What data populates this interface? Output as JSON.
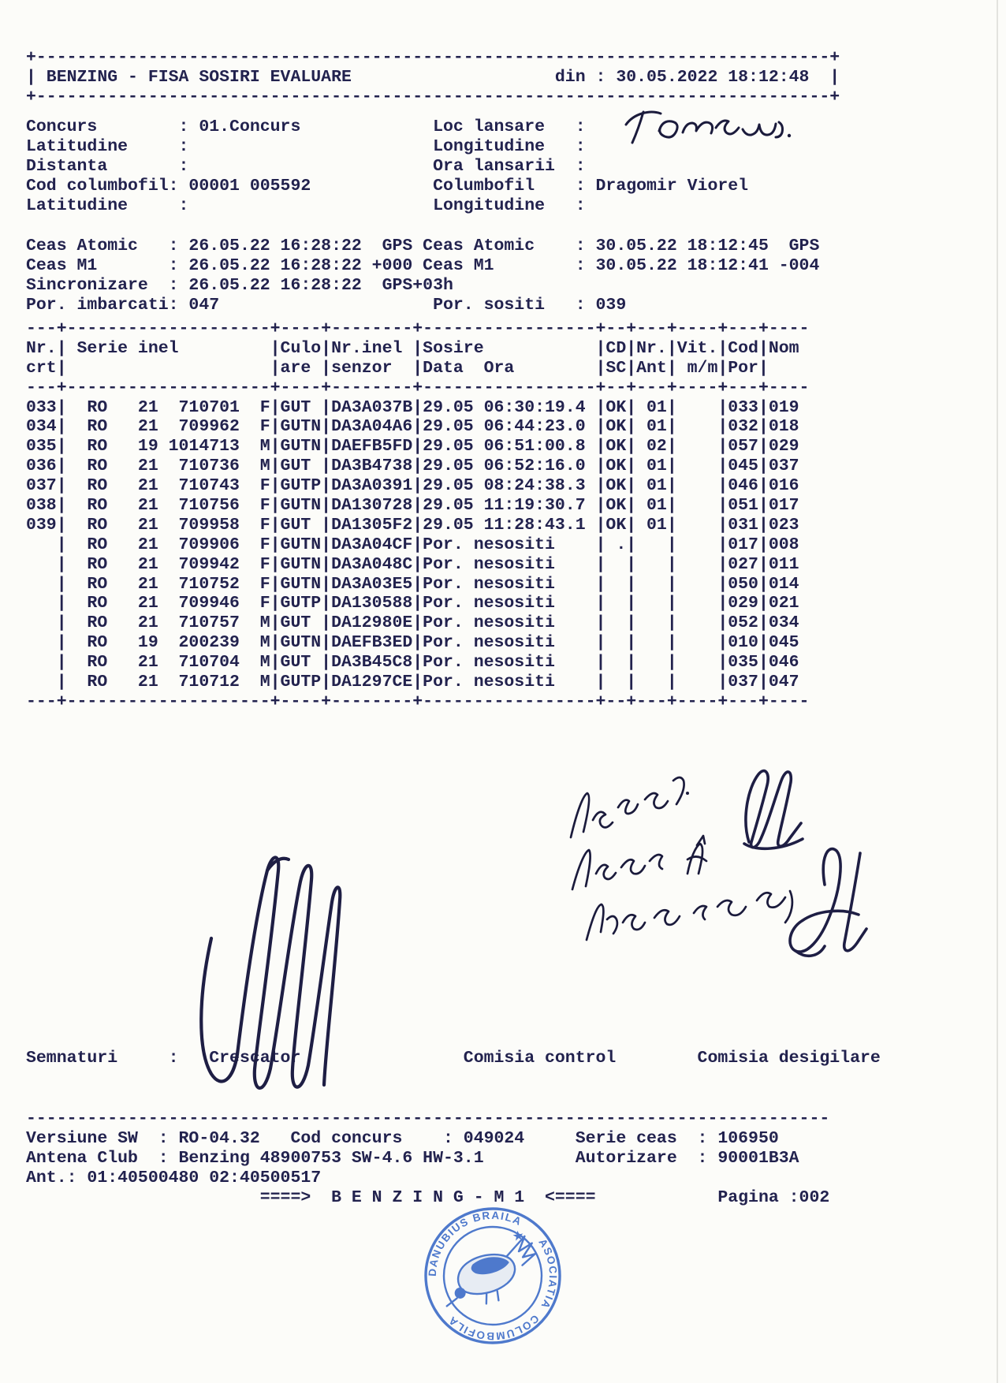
{
  "page": {
    "background": "#fcfcf9",
    "ink_color": "#22224e",
    "handwriting_color": "#1b1b3c",
    "stamp_color": "#3767c6"
  },
  "header": {
    "title": "BENZING - FISA SOSIRI EVALUARE",
    "din_label": "din",
    "din_value": "30.05.2022 18:12:48"
  },
  "info": {
    "rows": [
      {
        "left_label": "Concurs",
        "left_value": "01.Concurs",
        "right_label": "Loc lansare",
        "right_value": ""
      },
      {
        "left_label": "Latitudine",
        "left_value": "",
        "right_label": "Longitudine",
        "right_value": ""
      },
      {
        "left_label": "Distanta",
        "left_value": "",
        "right_label": "Ora lansarii",
        "right_value": ""
      },
      {
        "left_label": "Cod columbofil",
        "left_value": "00001 005592",
        "right_label": "Columbofil",
        "right_value": "Dragomir Viorel"
      },
      {
        "left_label": "Latitudine",
        "left_value": "",
        "right_label": "Longitudine",
        "right_value": ""
      }
    ]
  },
  "handwriting": {
    "loc_lansare": "Tomaszow"
  },
  "clocks": {
    "rows": [
      {
        "left_label": "Ceas Atomic",
        "left_value": "26.05.22 16:28:22",
        "left_suffix": "GPS",
        "right_label": "Ceas Atomic",
        "right_value": "30.05.22 18:12:45",
        "right_suffix": "GPS"
      },
      {
        "left_label": "Ceas M1",
        "left_value": "26.05.22 16:28:22",
        "left_suffix": "+000",
        "right_label": "Ceas M1",
        "right_value": "30.05.22 18:12:41",
        "right_suffix": "-004"
      },
      {
        "left_label": "Sincronizare",
        "left_value": "26.05.22 16:28:22",
        "left_suffix": "GPS+03h",
        "right_label": "",
        "right_value": "",
        "right_suffix": ""
      },
      {
        "left_label": "Por. imbarcati",
        "left_value": "047",
        "left_suffix": "",
        "right_label": "Por. sositi",
        "right_value": "039",
        "right_suffix": ""
      }
    ]
  },
  "table": {
    "head": [
      {
        "top": "Nr.",
        "bottom": "crt"
      },
      {
        "top": "Serie inel",
        "bottom": ""
      },
      {
        "top": "Culo",
        "bottom": "are"
      },
      {
        "top": "Nr.inel",
        "bottom": "senzor"
      },
      {
        "top": "Sosire",
        "bottom": "Data  Ora"
      },
      {
        "top": "CD",
        "bottom": "SC"
      },
      {
        "top": "Nr.",
        "bottom": "Ant"
      },
      {
        "top": "Vit.",
        "bottom": "m/m"
      },
      {
        "top": "Cod",
        "bottom": "Por"
      },
      {
        "top": "Nom",
        "bottom": ""
      }
    ],
    "rows": [
      {
        "nr": "033",
        "tara": "RO",
        "an": "21",
        "serie": "710701",
        "sex": "F",
        "culoare": "GUT",
        "senzor": "DA3A037B",
        "sosire": "29.05 06:30:19.4",
        "cd": "OK",
        "ant": "01",
        "vit": "",
        "por": "033",
        "nom": "019"
      },
      {
        "nr": "034",
        "tara": "RO",
        "an": "21",
        "serie": "709962",
        "sex": "F",
        "culoare": "GUTN",
        "senzor": "DA3A04A6",
        "sosire": "29.05 06:44:23.0",
        "cd": "OK",
        "ant": "01",
        "vit": "",
        "por": "032",
        "nom": "018"
      },
      {
        "nr": "035",
        "tara": "RO",
        "an": "19",
        "serie": "1014713",
        "sex": "M",
        "culoare": "GUTN",
        "senzor": "DAEFB5FD",
        "sosire": "29.05 06:51:00.8",
        "cd": "OK",
        "ant": "02",
        "vit": "",
        "por": "057",
        "nom": "029"
      },
      {
        "nr": "036",
        "tara": "RO",
        "an": "21",
        "serie": "710736",
        "sex": "M",
        "culoare": "GUT",
        "senzor": "DA3B4738",
        "sosire": "29.05 06:52:16.0",
        "cd": "OK",
        "ant": "01",
        "vit": "",
        "por": "045",
        "nom": "037"
      },
      {
        "nr": "037",
        "tara": "RO",
        "an": "21",
        "serie": "710743",
        "sex": "F",
        "culoare": "GUTP",
        "senzor": "DA3A0391",
        "sosire": "29.05 08:24:38.3",
        "cd": "OK",
        "ant": "01",
        "vit": "",
        "por": "046",
        "nom": "016"
      },
      {
        "nr": "038",
        "tara": "RO",
        "an": "21",
        "serie": "710756",
        "sex": "F",
        "culoare": "GUTN",
        "senzor": "DA130728",
        "sosire": "29.05 11:19:30.7",
        "cd": "OK",
        "ant": "01",
        "vit": "",
        "por": "051",
        "nom": "017"
      },
      {
        "nr": "039",
        "tara": "RO",
        "an": "21",
        "serie": "709958",
        "sex": "F",
        "culoare": "GUT",
        "senzor": "DA1305F2",
        "sosire": "29.05 11:28:43.1",
        "cd": "OK",
        "ant": "01",
        "vit": "",
        "por": "031",
        "nom": "023"
      },
      {
        "nr": "",
        "tara": "RO",
        "an": "21",
        "serie": "709906",
        "sex": "F",
        "culoare": "GUTN",
        "senzor": "DA3A04CF",
        "sosire": "Por. nesositi",
        "cd": ".",
        "ant": "",
        "vit": "",
        "por": "017",
        "nom": "008"
      },
      {
        "nr": "",
        "tara": "RO",
        "an": "21",
        "serie": "709942",
        "sex": "F",
        "culoare": "GUTN",
        "senzor": "DA3A048C",
        "sosire": "Por. nesositi",
        "cd": "",
        "ant": "",
        "vit": "",
        "por": "027",
        "nom": "011"
      },
      {
        "nr": "",
        "tara": "RO",
        "an": "21",
        "serie": "710752",
        "sex": "F",
        "culoare": "GUTN",
        "senzor": "DA3A03E5",
        "sosire": "Por. nesositi",
        "cd": "",
        "ant": "",
        "vit": "",
        "por": "050",
        "nom": "014"
      },
      {
        "nr": "",
        "tara": "RO",
        "an": "21",
        "serie": "709946",
        "sex": "F",
        "culoare": "GUTP",
        "senzor": "DA130588",
        "sosire": "Por. nesositi",
        "cd": "",
        "ant": "",
        "vit": "",
        "por": "029",
        "nom": "021"
      },
      {
        "nr": "",
        "tara": "RO",
        "an": "21",
        "serie": "710757",
        "sex": "M",
        "culoare": "GUT",
        "senzor": "DA12980E",
        "sosire": "Por. nesositi",
        "cd": "",
        "ant": "",
        "vit": "",
        "por": "052",
        "nom": "034"
      },
      {
        "nr": "",
        "tara": "RO",
        "an": "19",
        "serie": "200239",
        "sex": "M",
        "culoare": "GUTN",
        "senzor": "DAEFB3ED",
        "sosire": "Por. nesositi",
        "cd": "",
        "ant": "",
        "vit": "",
        "por": "010",
        "nom": "045"
      },
      {
        "nr": "",
        "tara": "RO",
        "an": "21",
        "serie": "710704",
        "sex": "M",
        "culoare": "GUT",
        "senzor": "DA3B45C8",
        "sosire": "Por. nesositi",
        "cd": "",
        "ant": "",
        "vit": "",
        "por": "035",
        "nom": "046"
      },
      {
        "nr": "",
        "tara": "RO",
        "an": "21",
        "serie": "710712",
        "sex": "M",
        "culoare": "GUTP",
        "senzor": "DA1297CE",
        "sosire": "Por. nesositi",
        "cd": "",
        "ant": "",
        "vit": "",
        "por": "037",
        "nom": "047"
      }
    ]
  },
  "signatures": {
    "label": "Semnaturi",
    "role_crescator": "Crescator",
    "role_comisia_control": "Comisia control",
    "role_comisia_desigilare": "Comisia desigilare"
  },
  "footer": {
    "versiune_sw_label": "Versiune SW",
    "versiune_sw": "RO-04.32",
    "cod_concurs_label": "Cod concurs",
    "cod_concurs": "049024",
    "serie_ceas_label": "Serie ceas",
    "serie_ceas": "106950",
    "antena_club_label": "Antena Club",
    "antena_club": "Benzing 48900753 SW-4.6 HW-3.1",
    "autorizare_label": "Autorizare",
    "autorizare": "90001B3A",
    "ant_label": "Ant.:",
    "ant_values": "01:40500480 02:40500517",
    "arrow_left": "====>",
    "benzing_banner": "B E N Z I N G - M 1",
    "arrow_right": "<====",
    "pagina_label": "Pagina",
    "pagina_value": "002"
  },
  "stamp": {
    "text_top": "DANUBIUS BRAILA",
    "text_right": "ASOCIATIA",
    "text_bottom": "COLUMBOFILA",
    "star_icon": "★",
    "color": "#3767c6"
  }
}
